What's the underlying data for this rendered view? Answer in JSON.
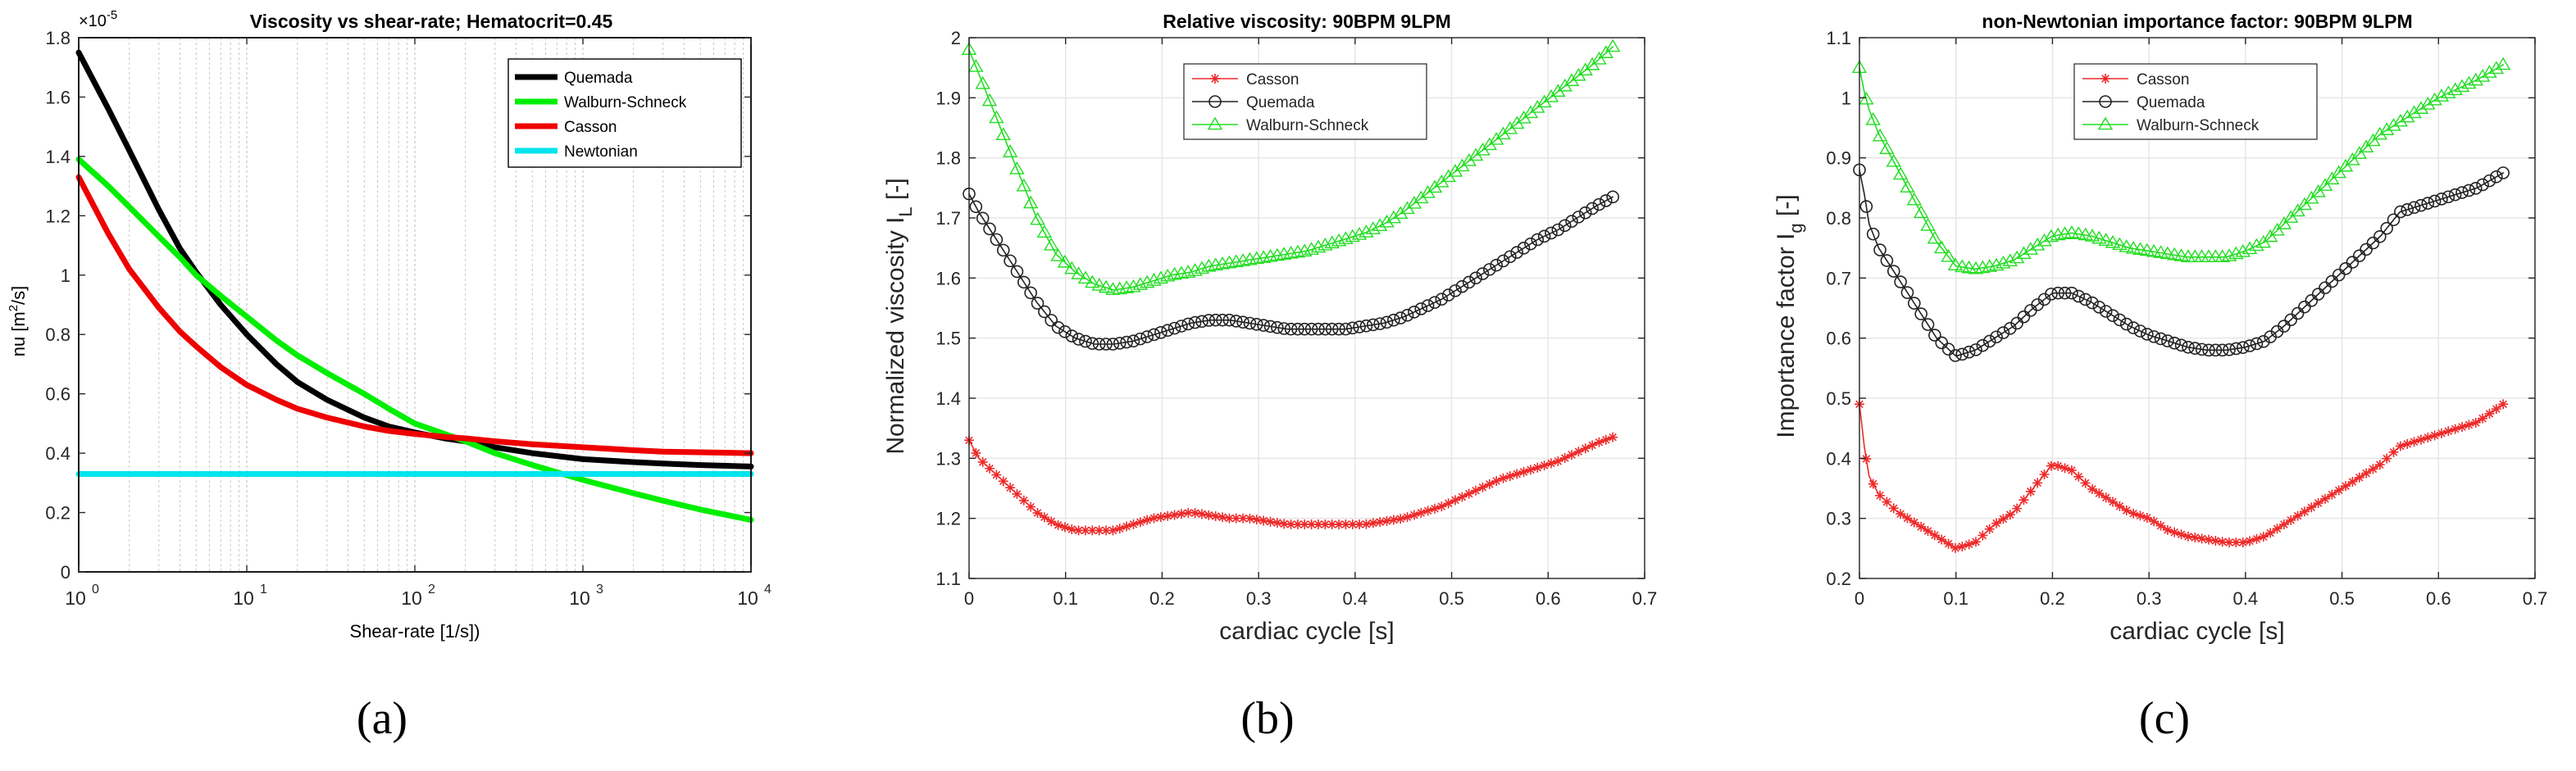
{
  "chart_data": [
    {
      "type": "line",
      "title": "Viscosity vs shear-rate; Hematocrit=0.45",
      "xlabel": "Shear-rate [1/s])",
      "ylabel": "nu [m²/s]",
      "ylabel_main": "nu [m",
      "ylabel_sup": "2",
      "ylabel_tail": "/s]",
      "y_multiplier": "×10",
      "y_multiplier_exp": "-5",
      "xscale": "log",
      "xlim": [
        1,
        10000
      ],
      "ylim": [
        0,
        1.8
      ],
      "grid": true,
      "legend": "top-right",
      "y_ticks": [
        {
          "v": 0,
          "label": "0"
        },
        {
          "v": 0.2,
          "label": "0.2"
        },
        {
          "v": 0.4,
          "label": "0.4"
        },
        {
          "v": 0.6,
          "label": "0.6"
        },
        {
          "v": 0.8,
          "label": "0.8"
        },
        {
          "v": 1.0,
          "label": "1"
        },
        {
          "v": 1.2,
          "label": "1.2"
        },
        {
          "v": 1.4,
          "label": "1.4"
        },
        {
          "v": 1.6,
          "label": "1.6"
        },
        {
          "v": 1.8,
          "label": "1.8"
        }
      ],
      "x_ticks": [
        {
          "v": 1,
          "base": "10",
          "exp": "0"
        },
        {
          "v": 10,
          "base": "10",
          "exp": "1"
        },
        {
          "v": 100,
          "base": "10",
          "exp": "2"
        },
        {
          "v": 1000,
          "base": "10",
          "exp": "3"
        },
        {
          "v": 10000,
          "base": "10",
          "exp": "4"
        }
      ],
      "series": [
        {
          "name": "Quemada",
          "color": "#000000",
          "x": [
            1,
            1.5,
            2,
            3,
            4,
            5,
            7,
            10,
            15,
            20,
            30,
            50,
            70,
            100,
            150,
            200,
            300,
            500,
            1000,
            2000,
            3000,
            5000,
            10000
          ],
          "y": [
            1.75,
            1.56,
            1.42,
            1.22,
            1.09,
            1.01,
            0.9,
            0.8,
            0.7,
            0.64,
            0.58,
            0.52,
            0.49,
            0.47,
            0.45,
            0.44,
            0.42,
            0.4,
            0.38,
            0.37,
            0.365,
            0.36,
            0.355
          ]
        },
        {
          "name": "Walburn-Schneck",
          "color": "#00ee00",
          "x": [
            1,
            1.5,
            2,
            3,
            4,
            5,
            7,
            10,
            15,
            20,
            30,
            50,
            70,
            100,
            150,
            200,
            300,
            500,
            1000,
            2000,
            3000,
            5000,
            10000
          ],
          "y": [
            1.39,
            1.3,
            1.23,
            1.13,
            1.06,
            1.0,
            0.93,
            0.86,
            0.78,
            0.73,
            0.67,
            0.6,
            0.55,
            0.5,
            0.465,
            0.44,
            0.4,
            0.36,
            0.31,
            0.265,
            0.24,
            0.21,
            0.175
          ]
        },
        {
          "name": "Casson",
          "color": "#ee0000",
          "x": [
            1,
            1.5,
            2,
            3,
            4,
            5,
            7,
            10,
            15,
            20,
            30,
            50,
            70,
            100,
            150,
            200,
            300,
            500,
            1000,
            2000,
            3000,
            5000,
            10000
          ],
          "y": [
            1.33,
            1.14,
            1.02,
            0.89,
            0.81,
            0.76,
            0.69,
            0.63,
            0.58,
            0.55,
            0.52,
            0.49,
            0.475,
            0.465,
            0.455,
            0.45,
            0.44,
            0.43,
            0.42,
            0.41,
            0.405,
            0.403,
            0.4
          ]
        },
        {
          "name": "Newtonian",
          "color": "#00e5ee",
          "x": [
            1,
            10000
          ],
          "y": [
            0.33,
            0.33
          ]
        }
      ]
    },
    {
      "type": "line",
      "title": "Relative viscosity: 90BPM 9LPM",
      "xlabel": "cardiac cycle [s]",
      "ylabel_main": "Normalized viscosity  I",
      "ylabel_sub": "L",
      "ylabel_tail": " [-]",
      "xlim": [
        0,
        0.7
      ],
      "ylim": [
        1.1,
        2.0
      ],
      "grid": true,
      "legend": "top-center",
      "x_ticks": [
        {
          "v": 0,
          "label": "0"
        },
        {
          "v": 0.1,
          "label": "0.1"
        },
        {
          "v": 0.2,
          "label": "0.2"
        },
        {
          "v": 0.3,
          "label": "0.3"
        },
        {
          "v": 0.4,
          "label": "0.4"
        },
        {
          "v": 0.5,
          "label": "0.5"
        },
        {
          "v": 0.6,
          "label": "0.6"
        },
        {
          "v": 0.7,
          "label": "0.7"
        }
      ],
      "y_ticks": [
        {
          "v": 1.1,
          "label": "1.1"
        },
        {
          "v": 1.2,
          "label": "1.2"
        },
        {
          "v": 1.3,
          "label": "1.3"
        },
        {
          "v": 1.4,
          "label": "1.4"
        },
        {
          "v": 1.5,
          "label": "1.5"
        },
        {
          "v": 1.6,
          "label": "1.6"
        },
        {
          "v": 1.7,
          "label": "1.7"
        },
        {
          "v": 1.8,
          "label": "1.8"
        },
        {
          "v": 1.9,
          "label": "1.9"
        },
        {
          "v": 2.0,
          "label": "2"
        }
      ],
      "series": [
        {
          "name": "Casson",
          "color": "#ee2a2a",
          "marker": "star",
          "x": [
            0,
            0.01,
            0.03,
            0.05,
            0.07,
            0.09,
            0.11,
            0.13,
            0.15,
            0.17,
            0.19,
            0.21,
            0.23,
            0.25,
            0.27,
            0.29,
            0.31,
            0.33,
            0.35,
            0.37,
            0.39,
            0.41,
            0.43,
            0.45,
            0.47,
            0.49,
            0.51,
            0.53,
            0.55,
            0.57,
            0.59,
            0.61,
            0.63,
            0.65,
            0.667
          ],
          "y": [
            1.33,
            1.3,
            1.27,
            1.24,
            1.21,
            1.19,
            1.18,
            1.18,
            1.18,
            1.19,
            1.2,
            1.205,
            1.21,
            1.205,
            1.2,
            1.2,
            1.195,
            1.19,
            1.19,
            1.19,
            1.19,
            1.19,
            1.195,
            1.2,
            1.21,
            1.22,
            1.235,
            1.25,
            1.265,
            1.275,
            1.285,
            1.295,
            1.31,
            1.325,
            1.335
          ]
        },
        {
          "name": "Quemada",
          "color": "#222222",
          "marker": "circle",
          "x": [
            0,
            0.01,
            0.03,
            0.05,
            0.07,
            0.09,
            0.11,
            0.13,
            0.15,
            0.17,
            0.19,
            0.21,
            0.23,
            0.25,
            0.27,
            0.29,
            0.31,
            0.33,
            0.35,
            0.37,
            0.39,
            0.41,
            0.43,
            0.45,
            0.47,
            0.49,
            0.51,
            0.53,
            0.55,
            0.57,
            0.59,
            0.61,
            0.63,
            0.65,
            0.667
          ],
          "y": [
            1.74,
            1.71,
            1.66,
            1.61,
            1.56,
            1.52,
            1.5,
            1.49,
            1.49,
            1.495,
            1.505,
            1.515,
            1.525,
            1.53,
            1.53,
            1.525,
            1.52,
            1.515,
            1.515,
            1.515,
            1.515,
            1.52,
            1.525,
            1.535,
            1.55,
            1.565,
            1.585,
            1.605,
            1.625,
            1.645,
            1.665,
            1.68,
            1.7,
            1.72,
            1.735
          ]
        },
        {
          "name": "Walburn-Schneck",
          "color": "#22dd22",
          "marker": "triangle",
          "x": [
            0,
            0.01,
            0.03,
            0.05,
            0.07,
            0.09,
            0.11,
            0.13,
            0.15,
            0.17,
            0.19,
            0.21,
            0.23,
            0.25,
            0.27,
            0.29,
            0.31,
            0.33,
            0.35,
            0.37,
            0.39,
            0.41,
            0.43,
            0.45,
            0.47,
            0.49,
            0.51,
            0.53,
            0.55,
            0.57,
            0.59,
            0.61,
            0.63,
            0.65,
            0.667
          ],
          "y": [
            1.98,
            1.94,
            1.86,
            1.78,
            1.7,
            1.64,
            1.61,
            1.59,
            1.58,
            1.585,
            1.595,
            1.605,
            1.61,
            1.62,
            1.625,
            1.63,
            1.635,
            1.64,
            1.645,
            1.655,
            1.665,
            1.675,
            1.69,
            1.71,
            1.735,
            1.76,
            1.785,
            1.81,
            1.835,
            1.86,
            1.885,
            1.91,
            1.935,
            1.96,
            1.985
          ]
        }
      ]
    },
    {
      "type": "line",
      "title": "non-Newtonian importance factor: 90BPM 9LPM",
      "xlabel": "cardiac cycle [s]",
      "ylabel_main": "Importance factor  I",
      "ylabel_sub": "g",
      "ylabel_tail": " [-]",
      "xlim": [
        0,
        0.7
      ],
      "ylim": [
        0.2,
        1.1
      ],
      "grid": true,
      "legend": "top-center",
      "x_ticks": [
        {
          "v": 0,
          "label": "0"
        },
        {
          "v": 0.1,
          "label": "0.1"
        },
        {
          "v": 0.2,
          "label": "0.2"
        },
        {
          "v": 0.3,
          "label": "0.3"
        },
        {
          "v": 0.4,
          "label": "0.4"
        },
        {
          "v": 0.5,
          "label": "0.5"
        },
        {
          "v": 0.6,
          "label": "0.6"
        },
        {
          "v": 0.7,
          "label": "0.7"
        }
      ],
      "y_ticks": [
        {
          "v": 0.2,
          "label": "0.2"
        },
        {
          "v": 0.3,
          "label": "0.3"
        },
        {
          "v": 0.4,
          "label": "0.4"
        },
        {
          "v": 0.5,
          "label": "0.5"
        },
        {
          "v": 0.6,
          "label": "0.6"
        },
        {
          "v": 0.7,
          "label": "0.7"
        },
        {
          "v": 0.8,
          "label": "0.8"
        },
        {
          "v": 0.9,
          "label": "0.9"
        },
        {
          "v": 1.0,
          "label": "1"
        },
        {
          "v": 1.1,
          "label": "1.1"
        }
      ],
      "series": [
        {
          "name": "Casson",
          "color": "#ee2a2a",
          "marker": "star",
          "x": [
            0,
            0.005,
            0.01,
            0.02,
            0.04,
            0.06,
            0.08,
            0.1,
            0.12,
            0.14,
            0.16,
            0.18,
            0.2,
            0.22,
            0.24,
            0.26,
            0.28,
            0.3,
            0.32,
            0.34,
            0.36,
            0.38,
            0.4,
            0.42,
            0.44,
            0.46,
            0.48,
            0.5,
            0.52,
            0.54,
            0.56,
            0.58,
            0.6,
            0.62,
            0.64,
            0.667
          ],
          "y": [
            0.49,
            0.42,
            0.37,
            0.34,
            0.31,
            0.29,
            0.27,
            0.25,
            0.26,
            0.29,
            0.31,
            0.35,
            0.39,
            0.38,
            0.35,
            0.33,
            0.31,
            0.3,
            0.28,
            0.27,
            0.265,
            0.26,
            0.26,
            0.27,
            0.29,
            0.31,
            0.33,
            0.35,
            0.37,
            0.39,
            0.42,
            0.43,
            0.44,
            0.45,
            0.46,
            0.49
          ]
        },
        {
          "name": "Quemada",
          "color": "#222222",
          "marker": "circle",
          "x": [
            0,
            0.005,
            0.01,
            0.02,
            0.04,
            0.06,
            0.08,
            0.1,
            0.12,
            0.14,
            0.16,
            0.18,
            0.2,
            0.22,
            0.24,
            0.26,
            0.28,
            0.3,
            0.32,
            0.34,
            0.36,
            0.38,
            0.4,
            0.42,
            0.44,
            0.46,
            0.48,
            0.5,
            0.52,
            0.54,
            0.56,
            0.58,
            0.6,
            0.62,
            0.64,
            0.667
          ],
          "y": [
            0.88,
            0.84,
            0.79,
            0.75,
            0.7,
            0.65,
            0.6,
            0.57,
            0.58,
            0.6,
            0.62,
            0.65,
            0.675,
            0.675,
            0.66,
            0.64,
            0.62,
            0.605,
            0.595,
            0.585,
            0.58,
            0.58,
            0.585,
            0.595,
            0.62,
            0.65,
            0.68,
            0.71,
            0.74,
            0.77,
            0.81,
            0.82,
            0.83,
            0.84,
            0.85,
            0.875
          ]
        },
        {
          "name": "Walburn-Schneck",
          "color": "#22dd22",
          "marker": "triangle",
          "x": [
            0,
            0.005,
            0.01,
            0.02,
            0.04,
            0.06,
            0.08,
            0.1,
            0.12,
            0.14,
            0.16,
            0.18,
            0.2,
            0.22,
            0.24,
            0.26,
            0.28,
            0.3,
            0.32,
            0.34,
            0.36,
            0.38,
            0.4,
            0.42,
            0.44,
            0.46,
            0.48,
            0.5,
            0.52,
            0.54,
            0.56,
            0.58,
            0.6,
            0.62,
            0.64,
            0.667
          ],
          "y": [
            1.05,
            1.01,
            0.98,
            0.94,
            0.88,
            0.82,
            0.76,
            0.72,
            0.715,
            0.72,
            0.73,
            0.75,
            0.77,
            0.775,
            0.77,
            0.76,
            0.75,
            0.745,
            0.74,
            0.735,
            0.735,
            0.735,
            0.745,
            0.76,
            0.79,
            0.82,
            0.85,
            0.88,
            0.91,
            0.94,
            0.96,
            0.98,
            1.0,
            1.015,
            1.03,
            1.055
          ]
        }
      ]
    }
  ],
  "captions": [
    "(a)",
    "(b)",
    "(c)"
  ]
}
